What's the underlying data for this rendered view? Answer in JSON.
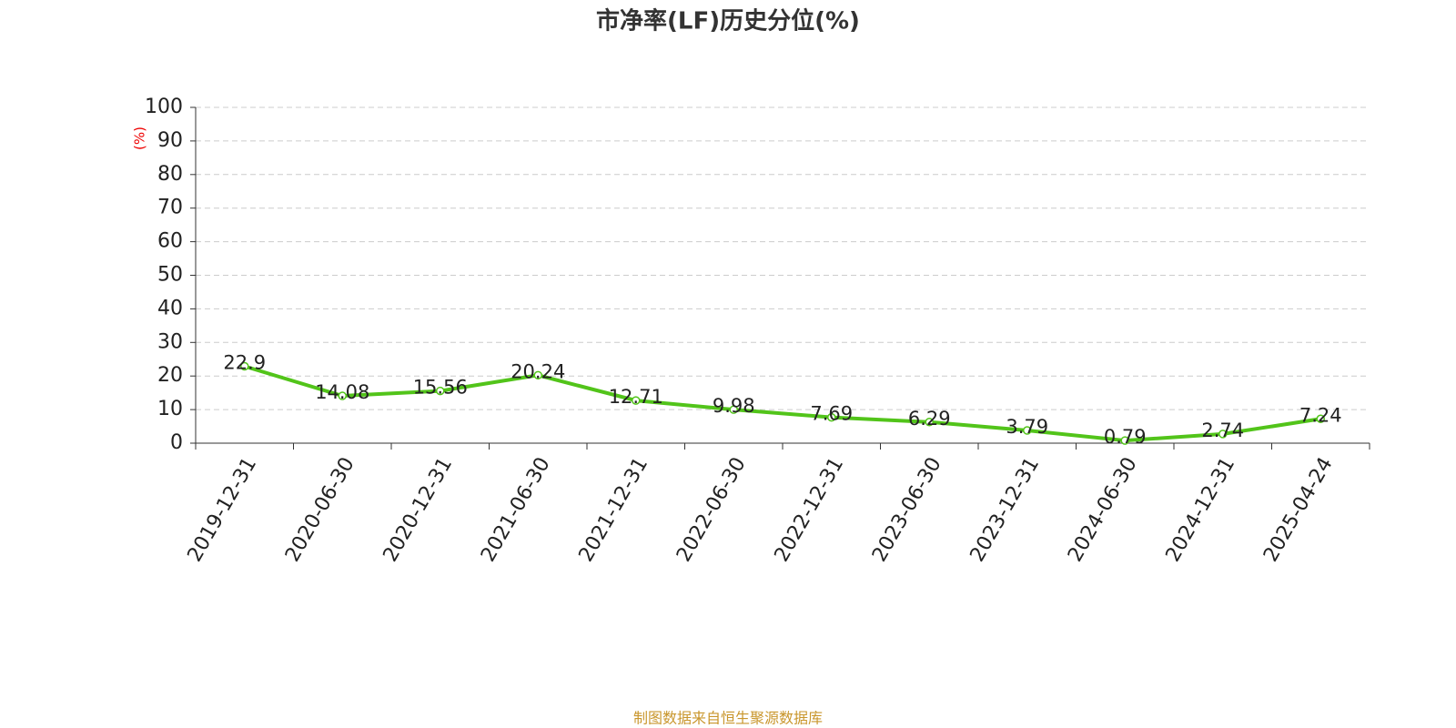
{
  "chart_data": {
    "type": "line",
    "title": "市净率(LF)历史分位(%)",
    "y_label": "(%)",
    "categories": [
      "2019-12-31",
      "2020-06-30",
      "2020-12-31",
      "2021-06-30",
      "2021-12-31",
      "2022-06-30",
      "2022-12-31",
      "2023-06-30",
      "2023-12-31",
      "2024-06-30",
      "2024-12-31",
      "2025-04-24"
    ],
    "series": [
      {
        "name": "市净率(LF)历史分位",
        "color": "#52c41a",
        "values": [
          22.9,
          14.08,
          15.56,
          20.24,
          12.71,
          9.98,
          7.69,
          6.29,
          3.79,
          0.79,
          2.74,
          7.24
        ]
      }
    ],
    "ylim": [
      0,
      100
    ],
    "yticks": [
      0,
      10,
      20,
      30,
      40,
      50,
      60,
      70,
      80,
      90,
      100
    ],
    "grid": true,
    "source": "制图数据来自恒生聚源数据库"
  }
}
